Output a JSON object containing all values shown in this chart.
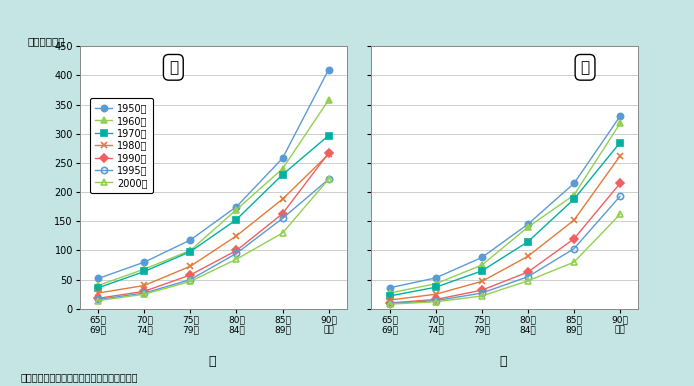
{
  "source_note": "資料：厚生労働省『人口動態統計』より作成",
  "ylabel": "（人口千対）",
  "ylim": [
    0,
    450
  ],
  "yticks": [
    0,
    50,
    100,
    150,
    200,
    250,
    300,
    350,
    400,
    450
  ],
  "x_labels": [
    "65～\n69歳",
    "70～\n74歳",
    "75～\n79歳",
    "80～\n84歳",
    "85～\n89歳",
    "90歳\n以上"
  ],
  "male_label": "男",
  "female_label": "女",
  "series": [
    {
      "label": "1950年",
      "color": "#5b9bd5",
      "marker": "o",
      "fillstyle": "full",
      "male": [
        52,
        80,
        118,
        175,
        258,
        410
      ],
      "female": [
        36,
        53,
        88,
        145,
        215,
        330
      ]
    },
    {
      "label": "1960年",
      "color": "#92d050",
      "marker": "^",
      "fillstyle": "full",
      "male": [
        40,
        68,
        100,
        170,
        240,
        358
      ],
      "female": [
        27,
        43,
        75,
        140,
        195,
        318
      ]
    },
    {
      "label": "1970年",
      "color": "#00b0a0",
      "marker": "s",
      "fillstyle": "full",
      "male": [
        36,
        64,
        98,
        153,
        230,
        297
      ],
      "female": [
        22,
        37,
        65,
        115,
        188,
        285
      ]
    },
    {
      "label": "1980年",
      "color": "#e07b39",
      "marker": "x",
      "fillstyle": "full",
      "male": [
        27,
        40,
        73,
        125,
        188,
        265
      ],
      "female": [
        15,
        25,
        47,
        90,
        152,
        262
      ]
    },
    {
      "label": "1990年",
      "color": "#f06060",
      "marker": "D",
      "fillstyle": "full",
      "male": [
        18,
        30,
        58,
        100,
        163,
        267
      ],
      "female": [
        10,
        16,
        32,
        63,
        120,
        215
      ]
    },
    {
      "label": "1995年",
      "color": "#5b9bd5",
      "marker": "o",
      "fillstyle": "none",
      "male": [
        16,
        27,
        50,
        95,
        155,
        222
      ],
      "female": [
        9,
        14,
        27,
        55,
        103,
        193
      ]
    },
    {
      "label": "2000年",
      "color": "#92d050",
      "marker": "^",
      "fillstyle": "none",
      "male": [
        14,
        25,
        47,
        85,
        130,
        222
      ],
      "female": [
        8,
        12,
        22,
        48,
        80,
        162
      ]
    }
  ],
  "background_color": "#c5e5e5",
  "plot_background": "#ffffff",
  "grid_color": "#bbbbbb"
}
